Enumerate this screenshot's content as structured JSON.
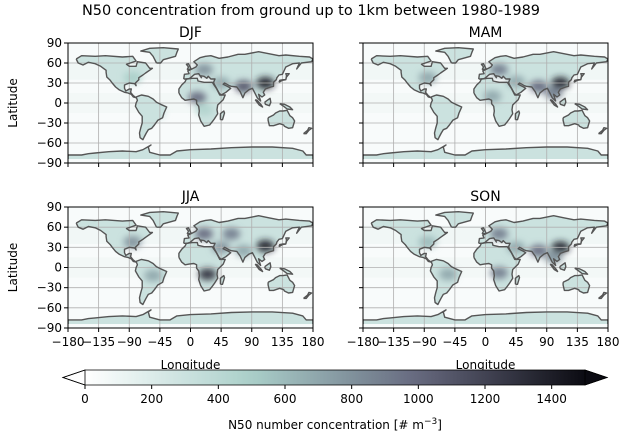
{
  "chart_data": {
    "type": "heatmap",
    "title": "N50 concentration from ground up to 1km between 1980-1989",
    "xlabel": "Longitude",
    "ylabel": "Latitude",
    "xlim": [
      -180,
      180
    ],
    "ylim": [
      -90,
      90
    ],
    "x_ticks": [
      -180,
      -135,
      -90,
      -45,
      0,
      45,
      90,
      135,
      180
    ],
    "y_ticks": [
      -90,
      -60,
      -30,
      0,
      30,
      60,
      90
    ],
    "x_tick_labels": [
      "−180",
      "−135",
      "−90",
      "−45",
      "0",
      "45",
      "90",
      "135",
      "180"
    ],
    "y_tick_labels": [
      "−90",
      "−60",
      "−30",
      "0",
      "30",
      "60",
      "90"
    ],
    "grid": true,
    "panels": [
      {
        "name": "DJF",
        "hotspots": [
          {
            "lon": 110,
            "lat": 30,
            "value": 1400
          },
          {
            "lon": 78,
            "lat": 25,
            "value": 1100
          },
          {
            "lon": 20,
            "lat": 50,
            "value": 800
          },
          {
            "lon": 10,
            "lat": 8,
            "value": 1000
          },
          {
            "lon": -85,
            "lat": 38,
            "value": 500
          },
          {
            "lon": 45,
            "lat": 30,
            "value": 700
          },
          {
            "lon": 20,
            "lat": -10,
            "value": 450
          },
          {
            "lon": -50,
            "lat": -15,
            "value": 300
          }
        ]
      },
      {
        "name": "MAM",
        "hotspots": [
          {
            "lon": 110,
            "lat": 30,
            "value": 1400
          },
          {
            "lon": 78,
            "lat": 25,
            "value": 1000
          },
          {
            "lon": 20,
            "lat": 50,
            "value": 900
          },
          {
            "lon": 10,
            "lat": 10,
            "value": 700
          },
          {
            "lon": -85,
            "lat": 38,
            "value": 700
          },
          {
            "lon": 45,
            "lat": 32,
            "value": 700
          },
          {
            "lon": 100,
            "lat": 15,
            "value": 900
          },
          {
            "lon": -55,
            "lat": -10,
            "value": 300
          }
        ]
      },
      {
        "name": "JJA",
        "hotspots": [
          {
            "lon": 110,
            "lat": 32,
            "value": 1400
          },
          {
            "lon": 25,
            "lat": -10,
            "value": 1300
          },
          {
            "lon": 20,
            "lat": 50,
            "value": 1000
          },
          {
            "lon": 60,
            "lat": 50,
            "value": 900
          },
          {
            "lon": -85,
            "lat": 38,
            "value": 800
          },
          {
            "lon": 45,
            "lat": 30,
            "value": 800
          },
          {
            "lon": -55,
            "lat": -12,
            "value": 700
          },
          {
            "lon": 78,
            "lat": 25,
            "value": 700
          }
        ]
      },
      {
        "name": "SON",
        "hotspots": [
          {
            "lon": 110,
            "lat": 30,
            "value": 1400
          },
          {
            "lon": 78,
            "lat": 25,
            "value": 1000
          },
          {
            "lon": 20,
            "lat": 50,
            "value": 900
          },
          {
            "lon": 20,
            "lat": -8,
            "value": 900
          },
          {
            "lon": -55,
            "lat": -10,
            "value": 700
          },
          {
            "lon": -85,
            "lat": 38,
            "value": 600
          },
          {
            "lon": 45,
            "lat": 30,
            "value": 700
          },
          {
            "lon": 100,
            "lat": 15,
            "value": 800
          }
        ]
      }
    ],
    "colorbar": {
      "label": "N50 number concentration [# m⁻³]",
      "label_prefix": "N50 number concentration [# m",
      "label_sup": "−3",
      "label_suffix": "]",
      "min": 0,
      "max": 1500,
      "ticks": [
        0,
        200,
        400,
        600,
        800,
        1000,
        1200,
        1400
      ],
      "tick_labels": [
        "0",
        "200",
        "400",
        "600",
        "800",
        "1000",
        "1200",
        "1400"
      ],
      "extend": "both",
      "colors": [
        "#ffffff",
        "#a9cfc9",
        "#66687e",
        "#0b0b12"
      ]
    }
  }
}
